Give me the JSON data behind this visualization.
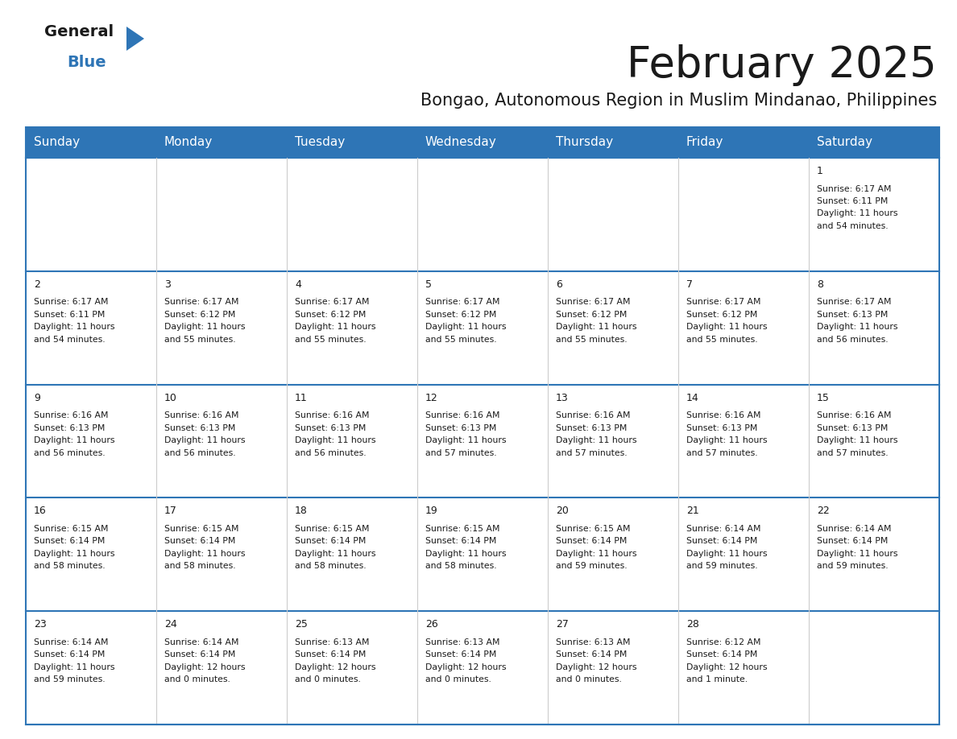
{
  "title": "February 2025",
  "subtitle": "Bongao, Autonomous Region in Muslim Mindanao, Philippines",
  "header_bg": "#2E75B6",
  "header_text_color": "#FFFFFF",
  "border_color": "#2E75B6",
  "cell_border_color": "#2E75B6",
  "day_headers": [
    "Sunday",
    "Monday",
    "Tuesday",
    "Wednesday",
    "Thursday",
    "Friday",
    "Saturday"
  ],
  "days": [
    {
      "day": 1,
      "col": 6,
      "row": 0,
      "sunrise": "6:17 AM",
      "sunset": "6:11 PM",
      "daylight_a": "11 hours",
      "daylight_b": "and 54 minutes."
    },
    {
      "day": 2,
      "col": 0,
      "row": 1,
      "sunrise": "6:17 AM",
      "sunset": "6:11 PM",
      "daylight_a": "11 hours",
      "daylight_b": "and 54 minutes."
    },
    {
      "day": 3,
      "col": 1,
      "row": 1,
      "sunrise": "6:17 AM",
      "sunset": "6:12 PM",
      "daylight_a": "11 hours",
      "daylight_b": "and 55 minutes."
    },
    {
      "day": 4,
      "col": 2,
      "row": 1,
      "sunrise": "6:17 AM",
      "sunset": "6:12 PM",
      "daylight_a": "11 hours",
      "daylight_b": "and 55 minutes."
    },
    {
      "day": 5,
      "col": 3,
      "row": 1,
      "sunrise": "6:17 AM",
      "sunset": "6:12 PM",
      "daylight_a": "11 hours",
      "daylight_b": "and 55 minutes."
    },
    {
      "day": 6,
      "col": 4,
      "row": 1,
      "sunrise": "6:17 AM",
      "sunset": "6:12 PM",
      "daylight_a": "11 hours",
      "daylight_b": "and 55 minutes."
    },
    {
      "day": 7,
      "col": 5,
      "row": 1,
      "sunrise": "6:17 AM",
      "sunset": "6:12 PM",
      "daylight_a": "11 hours",
      "daylight_b": "and 55 minutes."
    },
    {
      "day": 8,
      "col": 6,
      "row": 1,
      "sunrise": "6:17 AM",
      "sunset": "6:13 PM",
      "daylight_a": "11 hours",
      "daylight_b": "and 56 minutes."
    },
    {
      "day": 9,
      "col": 0,
      "row": 2,
      "sunrise": "6:16 AM",
      "sunset": "6:13 PM",
      "daylight_a": "11 hours",
      "daylight_b": "and 56 minutes."
    },
    {
      "day": 10,
      "col": 1,
      "row": 2,
      "sunrise": "6:16 AM",
      "sunset": "6:13 PM",
      "daylight_a": "11 hours",
      "daylight_b": "and 56 minutes."
    },
    {
      "day": 11,
      "col": 2,
      "row": 2,
      "sunrise": "6:16 AM",
      "sunset": "6:13 PM",
      "daylight_a": "11 hours",
      "daylight_b": "and 56 minutes."
    },
    {
      "day": 12,
      "col": 3,
      "row": 2,
      "sunrise": "6:16 AM",
      "sunset": "6:13 PM",
      "daylight_a": "11 hours",
      "daylight_b": "and 57 minutes."
    },
    {
      "day": 13,
      "col": 4,
      "row": 2,
      "sunrise": "6:16 AM",
      "sunset": "6:13 PM",
      "daylight_a": "11 hours",
      "daylight_b": "and 57 minutes."
    },
    {
      "day": 14,
      "col": 5,
      "row": 2,
      "sunrise": "6:16 AM",
      "sunset": "6:13 PM",
      "daylight_a": "11 hours",
      "daylight_b": "and 57 minutes."
    },
    {
      "day": 15,
      "col": 6,
      "row": 2,
      "sunrise": "6:16 AM",
      "sunset": "6:13 PM",
      "daylight_a": "11 hours",
      "daylight_b": "and 57 minutes."
    },
    {
      "day": 16,
      "col": 0,
      "row": 3,
      "sunrise": "6:15 AM",
      "sunset": "6:14 PM",
      "daylight_a": "11 hours",
      "daylight_b": "and 58 minutes."
    },
    {
      "day": 17,
      "col": 1,
      "row": 3,
      "sunrise": "6:15 AM",
      "sunset": "6:14 PM",
      "daylight_a": "11 hours",
      "daylight_b": "and 58 minutes."
    },
    {
      "day": 18,
      "col": 2,
      "row": 3,
      "sunrise": "6:15 AM",
      "sunset": "6:14 PM",
      "daylight_a": "11 hours",
      "daylight_b": "and 58 minutes."
    },
    {
      "day": 19,
      "col": 3,
      "row": 3,
      "sunrise": "6:15 AM",
      "sunset": "6:14 PM",
      "daylight_a": "11 hours",
      "daylight_b": "and 58 minutes."
    },
    {
      "day": 20,
      "col": 4,
      "row": 3,
      "sunrise": "6:15 AM",
      "sunset": "6:14 PM",
      "daylight_a": "11 hours",
      "daylight_b": "and 59 minutes."
    },
    {
      "day": 21,
      "col": 5,
      "row": 3,
      "sunrise": "6:14 AM",
      "sunset": "6:14 PM",
      "daylight_a": "11 hours",
      "daylight_b": "and 59 minutes."
    },
    {
      "day": 22,
      "col": 6,
      "row": 3,
      "sunrise": "6:14 AM",
      "sunset": "6:14 PM",
      "daylight_a": "11 hours",
      "daylight_b": "and 59 minutes."
    },
    {
      "day": 23,
      "col": 0,
      "row": 4,
      "sunrise": "6:14 AM",
      "sunset": "6:14 PM",
      "daylight_a": "11 hours",
      "daylight_b": "and 59 minutes."
    },
    {
      "day": 24,
      "col": 1,
      "row": 4,
      "sunrise": "6:14 AM",
      "sunset": "6:14 PM",
      "daylight_a": "12 hours",
      "daylight_b": "and 0 minutes."
    },
    {
      "day": 25,
      "col": 2,
      "row": 4,
      "sunrise": "6:13 AM",
      "sunset": "6:14 PM",
      "daylight_a": "12 hours",
      "daylight_b": "and 0 minutes."
    },
    {
      "day": 26,
      "col": 3,
      "row": 4,
      "sunrise": "6:13 AM",
      "sunset": "6:14 PM",
      "daylight_a": "12 hours",
      "daylight_b": "and 0 minutes."
    },
    {
      "day": 27,
      "col": 4,
      "row": 4,
      "sunrise": "6:13 AM",
      "sunset": "6:14 PM",
      "daylight_a": "12 hours",
      "daylight_b": "and 0 minutes."
    },
    {
      "day": 28,
      "col": 5,
      "row": 4,
      "sunrise": "6:12 AM",
      "sunset": "6:14 PM",
      "daylight_a": "12 hours",
      "daylight_b": "and 1 minute."
    }
  ],
  "num_rows": 5,
  "num_cols": 7,
  "fig_width": 11.88,
  "fig_height": 9.18,
  "title_fontsize": 38,
  "subtitle_fontsize": 15,
  "header_fontsize": 11,
  "day_num_fontsize": 9,
  "cell_text_fontsize": 7.8,
  "logo_general_color": "#1a1a1a",
  "logo_blue_color": "#2E75B6"
}
